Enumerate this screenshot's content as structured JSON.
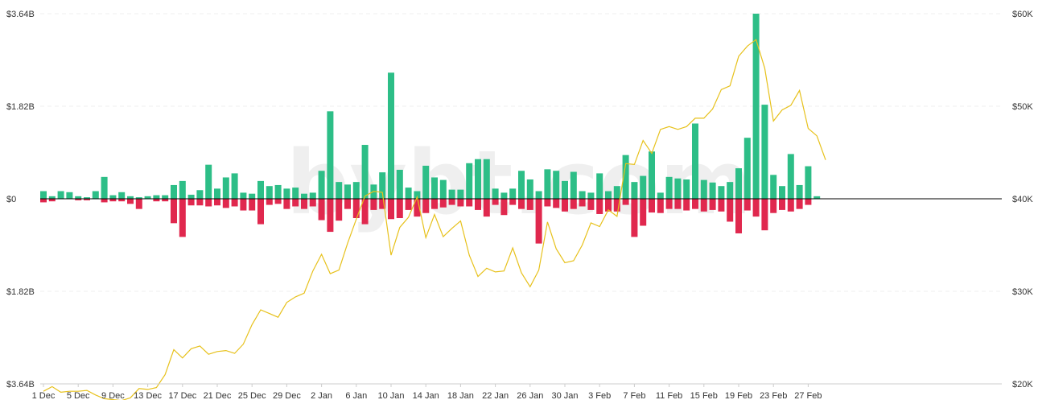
{
  "chart_data": {
    "type": "bar",
    "watermark": "bybt.com",
    "colors": {
      "inflow": "#2dbe87",
      "outflow": "#e0284e",
      "price": "#e7c11b",
      "zero_line": "#000000",
      "grid": "#e6e6e6"
    },
    "y_left": {
      "range": [
        -3.64,
        3.64
      ],
      "unit": "B",
      "ticks": [
        {
          "value": 3.64,
          "label": "$3.64B"
        },
        {
          "value": 1.82,
          "label": "$1.82B"
        },
        {
          "value": 0,
          "label": "$0"
        },
        {
          "value": -1.82,
          "label": "$1.82B"
        },
        {
          "value": -3.64,
          "label": "$3.64B"
        }
      ]
    },
    "y_right": {
      "range": [
        20000,
        60000
      ],
      "ticks": [
        {
          "value": 60000,
          "label": "$60K"
        },
        {
          "value": 50000,
          "label": "$50K"
        },
        {
          "value": 40000,
          "label": "$40K"
        },
        {
          "value": 30000,
          "label": "$30K"
        },
        {
          "value": 20000,
          "label": "$20K"
        }
      ]
    },
    "x_tick_labels": [
      "1 Dec",
      "5 Dec",
      "9 Dec",
      "13 Dec",
      "17 Dec",
      "21 Dec",
      "25 Dec",
      "29 Dec",
      "2 Jan",
      "6 Jan",
      "10 Jan",
      "14 Jan",
      "18 Jan",
      "22 Jan",
      "26 Jan",
      "30 Jan",
      "3 Feb",
      "7 Feb",
      "11 Feb",
      "15 Feb",
      "19 Feb",
      "23 Feb",
      "27 Feb"
    ],
    "x_tick_step_days": 4,
    "day_count": 91,
    "series": [
      {
        "kind": "bar-up",
        "values": [
          0.15,
          0.05,
          0.15,
          0.13,
          0.05,
          0.03,
          0.15,
          0.43,
          0.07,
          0.13,
          0.05,
          0.03,
          0.05,
          0.07,
          0.07,
          0.27,
          0.35,
          0.08,
          0.17,
          0.67,
          0.2,
          0.42,
          0.5,
          0.12,
          0.1,
          0.35,
          0.25,
          0.27,
          0.2,
          0.22,
          0.1,
          0.12,
          0.55,
          1.72,
          0.33,
          0.28,
          0.33,
          1.06,
          0.28,
          0.52,
          2.48,
          0.57,
          0.22,
          0.15,
          0.65,
          0.42,
          0.37,
          0.18,
          0.18,
          0.7,
          0.78,
          0.78,
          0.2,
          0.12,
          0.2,
          0.55,
          0.38,
          0.15,
          0.58,
          0.55,
          0.35,
          0.53,
          0.15,
          0.12,
          0.5,
          0.15,
          0.25,
          0.86,
          0.33,
          0.45,
          0.93,
          0.12,
          0.43,
          0.4,
          0.38,
          1.48,
          0.37,
          0.32,
          0.25,
          0.33,
          0.6,
          1.2,
          3.64,
          1.85,
          0.47,
          0.25,
          0.88,
          0.27,
          0.64,
          0.05,
          0.0
        ]
      },
      {
        "kind": "bar-down",
        "values": [
          -0.07,
          -0.05,
          0,
          0,
          -0.03,
          -0.03,
          0,
          -0.07,
          -0.05,
          -0.05,
          -0.1,
          -0.2,
          0,
          -0.05,
          -0.05,
          -0.48,
          -0.75,
          -0.13,
          -0.13,
          -0.15,
          -0.13,
          -0.18,
          -0.15,
          -0.23,
          -0.23,
          -0.5,
          -0.12,
          -0.1,
          -0.2,
          -0.15,
          -0.2,
          -0.15,
          -0.42,
          -0.65,
          -0.43,
          -0.2,
          -0.38,
          -0.5,
          -0.22,
          -0.2,
          -0.4,
          -0.38,
          -0.22,
          -0.35,
          -0.28,
          -0.2,
          -0.17,
          -0.12,
          -0.15,
          -0.15,
          -0.22,
          -0.35,
          -0.12,
          -0.32,
          -0.12,
          -0.2,
          -0.22,
          -0.88,
          -0.15,
          -0.18,
          -0.25,
          -0.2,
          -0.15,
          -0.22,
          -0.3,
          -0.25,
          -0.25,
          -0.12,
          -0.75,
          -0.53,
          -0.27,
          -0.28,
          -0.2,
          -0.2,
          -0.23,
          -0.2,
          -0.25,
          -0.22,
          -0.25,
          -0.45,
          -0.68,
          -0.23,
          -0.35,
          -0.62,
          -0.28,
          -0.22,
          -0.25,
          -0.2,
          -0.12,
          0,
          0
        ]
      },
      {
        "kind": "line",
        "values": [
          19200,
          19700,
          19100,
          19200,
          19200,
          19300,
          18800,
          18400,
          18300,
          18200,
          18500,
          19500,
          19400,
          19600,
          21000,
          23700,
          22800,
          23800,
          24100,
          23200,
          23500,
          23600,
          23300,
          24300,
          26400,
          28000,
          27600,
          27200,
          28800,
          29400,
          29800,
          32200,
          34000,
          31900,
          32300,
          35200,
          37800,
          40300,
          40800,
          40700,
          33900,
          36900,
          38000,
          40200,
          35800,
          38300,
          35900,
          36800,
          37600,
          33900,
          31600,
          32500,
          32100,
          32200,
          34700,
          32000,
          30500,
          32300,
          37500,
          34600,
          33100,
          33300,
          35000,
          37400,
          37000,
          38800,
          38100,
          43800,
          43700,
          46300,
          44900,
          47500,
          47800,
          47500,
          47800,
          48700,
          48700,
          49700,
          51800,
          52200,
          55400,
          56500,
          57200,
          54100,
          48400,
          49600,
          50100,
          51700,
          47600,
          46800,
          44200
        ]
      }
    ]
  }
}
